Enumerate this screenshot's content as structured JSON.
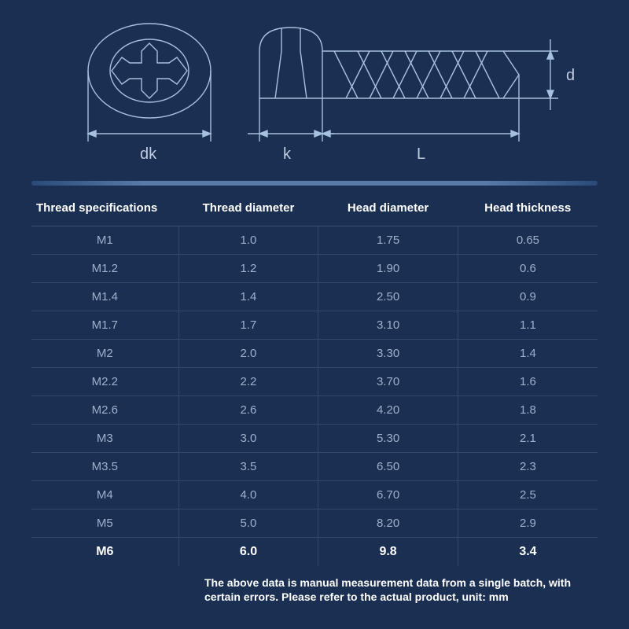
{
  "diagram": {
    "labels": {
      "dk": "dk",
      "k": "k",
      "L": "L",
      "d": "d"
    },
    "stroke_color": "#a8c0e0",
    "stroke_width": 1.4,
    "background": "#1a2f52"
  },
  "table": {
    "columns": [
      "Thread specifications",
      "Thread diameter",
      "Head diameter",
      "Head thickness"
    ],
    "rows": [
      [
        "M1",
        "1.0",
        "1.75",
        "0.65"
      ],
      [
        "M1.2",
        "1.2",
        "1.90",
        "0.6"
      ],
      [
        "M1.4",
        "1.4",
        "2.50",
        "0.9"
      ],
      [
        "M1.7",
        "1.7",
        "3.10",
        "1.1"
      ],
      [
        "M2",
        "2.0",
        "3.30",
        "1.4"
      ],
      [
        "M2.2",
        "2.2",
        "3.70",
        "1.6"
      ],
      [
        "M2.6",
        "2.6",
        "4.20",
        "1.8"
      ],
      [
        "M3",
        "3.0",
        "5.30",
        "2.1"
      ],
      [
        "M3.5",
        "3.5",
        "6.50",
        "2.3"
      ],
      [
        "M4",
        "4.0",
        "6.70",
        "2.5"
      ],
      [
        "M5",
        "5.0",
        "8.20",
        "2.9"
      ],
      [
        "M6",
        "6.0",
        "9.8",
        "3.4"
      ]
    ],
    "highlight_row_index": 11,
    "header_color": "#ffffff",
    "cell_color": "#9db0cc",
    "border_color": "#30486c",
    "font_size": 15
  },
  "footnote": "The above data is manual measurement data from a single batch, with certain errors. Please refer to the actual product, unit: mm"
}
